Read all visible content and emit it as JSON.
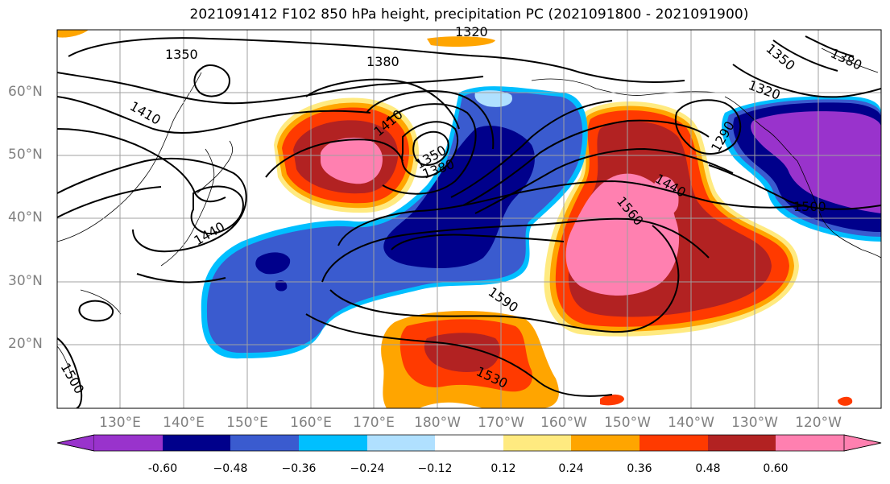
{
  "title": "2021091412 F102 850 hPa height, precipitation PC (2021091800 - 2021091900)",
  "lat_labels": [
    "60°N",
    "50°N",
    "40°N",
    "30°N",
    "20°N"
  ],
  "lon_labels": [
    "130°E",
    "140°E",
    "150°E",
    "160°E",
    "170°E",
    "180°W",
    "170°W",
    "160°W",
    "150°W",
    "140°W",
    "130°W",
    "120°W"
  ],
  "contour_labels": [
    "1320",
    "1350",
    "1380",
    "1410",
    "1350",
    "1380",
    "1410",
    "1440",
    "1560",
    "1440",
    "1500",
    "1590",
    "1530",
    "1350",
    "1380",
    "1320",
    "1290",
    "1500"
  ],
  "colorbar": {
    "levels": [
      "-0.60",
      "−0.48",
      "−0.36",
      "−0.24",
      "−0.12",
      "0.12",
      "0.24",
      "0.36",
      "0.48",
      "0.60"
    ],
    "colors": [
      "#9933cc",
      "#00008b",
      "#3a5bcf",
      "#00bfff",
      "#b0e0ff",
      "#ffffff",
      "#ffea80",
      "#ffa500",
      "#ff3a00",
      "#b22222",
      "#ff80b0"
    ]
  },
  "palette": {
    "purple": "#9933cc",
    "navy": "#00008b",
    "royal": "#3a5bcf",
    "sky": "#00bfff",
    "pale": "#b0e0ff",
    "yellow": "#ffea80",
    "orange": "#ffa500",
    "redorange": "#ff3a00",
    "darkred": "#b22222",
    "pink": "#ff80b0"
  }
}
